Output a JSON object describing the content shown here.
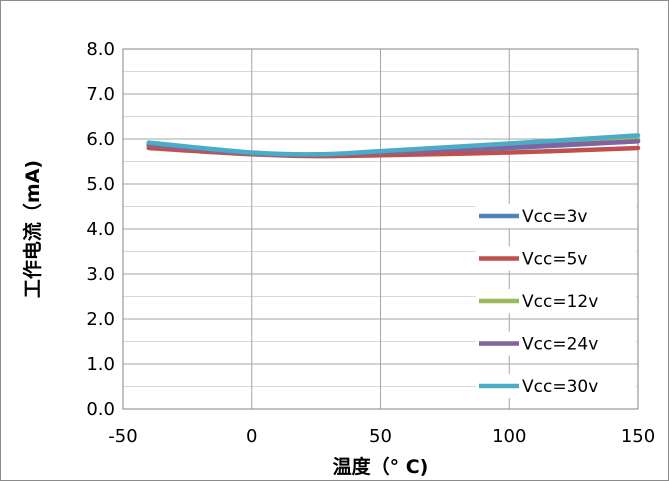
{
  "chart_data": {
    "type": "line",
    "title": "",
    "xlabel": "温度（° C)",
    "ylabel": "工作电流（mA)",
    "xlim": [
      -50,
      150
    ],
    "ylim": [
      0,
      8
    ],
    "x_ticks": [
      -50,
      0,
      50,
      100,
      150
    ],
    "x_tick_labels": [
      "-50",
      "0",
      "50",
      "100",
      "150"
    ],
    "y_ticks": [
      0,
      1,
      2,
      3,
      4,
      5,
      6,
      7,
      8
    ],
    "y_tick_labels": [
      "0.0",
      "1.0",
      "2.0",
      "3.0",
      "4.0",
      "5.0",
      "6.0",
      "7.0",
      "8.0"
    ],
    "grid": {
      "major_vertical": true,
      "major_horizontal": true,
      "minor_horizontal": true
    },
    "legend_position": "right",
    "x": [
      -40,
      0,
      25,
      50,
      100,
      150
    ],
    "series": [
      {
        "name": "Vcc=3v",
        "color": "#4f81bd",
        "values": [
          5.85,
          5.68,
          5.65,
          5.68,
          5.8,
          5.95
        ]
      },
      {
        "name": "Vcc=5v",
        "color": "#c0504d",
        "values": [
          5.8,
          5.66,
          5.62,
          5.64,
          5.7,
          5.8
        ]
      },
      {
        "name": "Vcc=12v",
        "color": "#9bbb59",
        "values": [
          5.88,
          5.68,
          5.65,
          5.7,
          5.85,
          6.0
        ]
      },
      {
        "name": "Vcc=24v",
        "color": "#8064a2",
        "values": [
          5.88,
          5.68,
          5.65,
          5.7,
          5.82,
          5.95
        ]
      },
      {
        "name": "Vcc=30v",
        "color": "#4bacc6",
        "values": [
          5.92,
          5.7,
          5.66,
          5.73,
          5.9,
          6.08
        ]
      }
    ]
  }
}
